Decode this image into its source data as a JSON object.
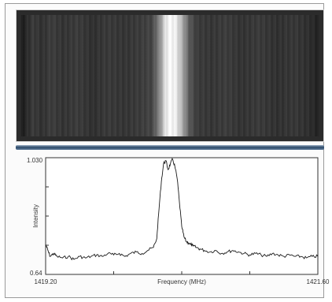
{
  "chart_data": {
    "type": "line",
    "xlabel": "Frequency (MHz)",
    "ylabel": "Intensity",
    "x_tick_labels": [
      "1419.20",
      "1421.60"
    ],
    "y_tick_labels": [
      "1.030",
      "0.64"
    ],
    "xlim": [
      1419.2,
      1421.6
    ],
    "ylim": [
      0.64,
      1.03
    ],
    "grid": false,
    "colors": {
      "line": "#1a1a1a",
      "axes": "#333333"
    },
    "series": [
      {
        "x": [
          1419.2,
          1419.22,
          1419.24,
          1419.27,
          1419.3,
          1419.35,
          1419.4,
          1419.45,
          1419.5,
          1419.55,
          1419.6,
          1419.65,
          1419.7,
          1419.75,
          1419.8,
          1419.85,
          1419.9,
          1419.95,
          1420.0,
          1420.05,
          1420.1,
          1420.15,
          1420.18,
          1420.2,
          1420.22,
          1420.24,
          1420.26,
          1420.28,
          1420.3,
          1420.32,
          1420.34,
          1420.36,
          1420.38,
          1420.4,
          1420.42,
          1420.44,
          1420.46,
          1420.48,
          1420.5,
          1420.53,
          1420.56,
          1420.6,
          1420.65,
          1420.7,
          1420.75,
          1420.8,
          1420.85,
          1420.9,
          1420.95,
          1421.0,
          1421.05,
          1421.1,
          1421.15,
          1421.2,
          1421.25,
          1421.3,
          1421.35,
          1421.4,
          1421.45,
          1421.5,
          1421.55,
          1421.6
        ],
        "y": [
          0.74,
          0.72,
          0.7,
          0.71,
          0.7,
          0.695,
          0.7,
          0.69,
          0.7,
          0.695,
          0.7,
          0.705,
          0.7,
          0.71,
          0.705,
          0.71,
          0.7,
          0.71,
          0.715,
          0.71,
          0.72,
          0.73,
          0.76,
          0.86,
          0.95,
          1.01,
          1.02,
          0.99,
          1.01,
          1.025,
          1.0,
          0.96,
          0.88,
          0.8,
          0.765,
          0.75,
          0.745,
          0.74,
          0.735,
          0.73,
          0.725,
          0.72,
          0.715,
          0.72,
          0.71,
          0.715,
          0.72,
          0.715,
          0.71,
          0.705,
          0.71,
          0.705,
          0.7,
          0.71,
          0.705,
          0.7,
          0.705,
          0.7,
          0.7,
          0.695,
          0.7,
          0.7
        ]
      }
    ]
  }
}
